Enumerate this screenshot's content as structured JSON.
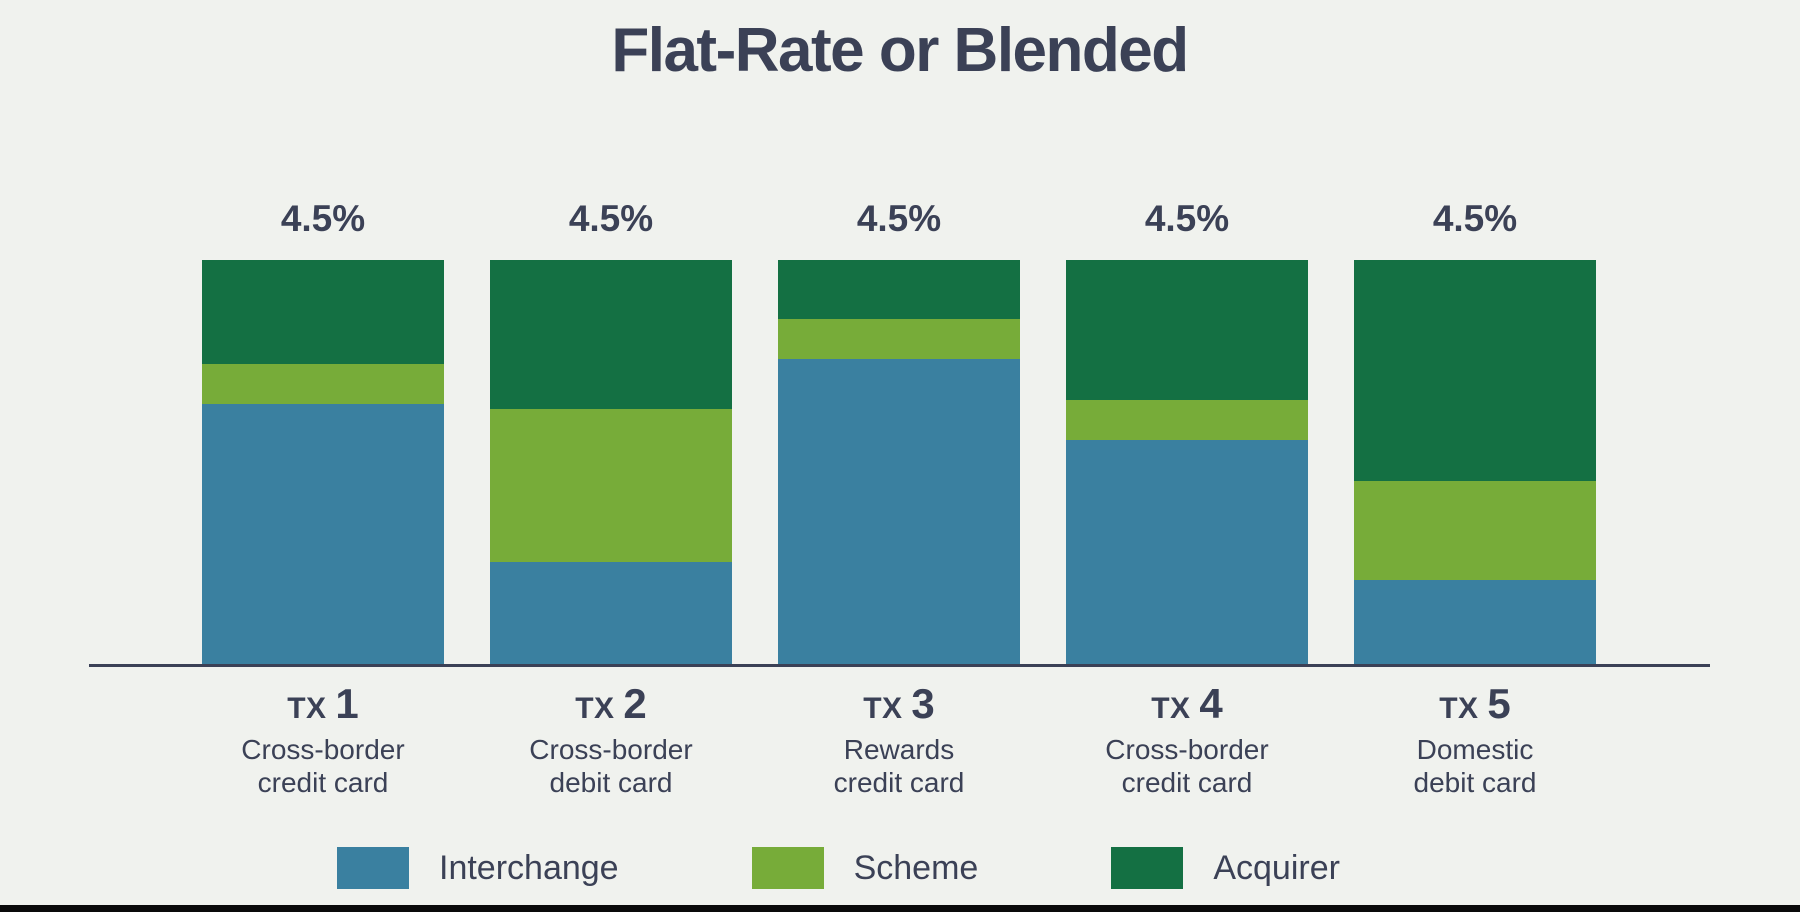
{
  "title": "Flat-Rate or Blended",
  "colors": {
    "background": "#f0f2ee",
    "text": "#3b4156",
    "axis": "#3b4156",
    "footer_bar": "#0a0a0a",
    "interchange": "#3a80a0",
    "scheme": "#77ac39",
    "acquirer": "#147043"
  },
  "chart_data": {
    "type": "stacked_bar",
    "title": "Flat-Rate or Blended",
    "unit": "%",
    "ylim": [
      0,
      4.5
    ],
    "grid": false,
    "legend_position": "bottom",
    "bar_totals": [
      "4.5%",
      "4.5%",
      "4.5%",
      "4.5%",
      "4.5%"
    ],
    "categories": [
      {
        "prefix": "TX",
        "number": "1",
        "description_lines": [
          "Cross-border",
          "credit card"
        ]
      },
      {
        "prefix": "TX",
        "number": "2",
        "description_lines": [
          "Cross-border",
          "debit card"
        ]
      },
      {
        "prefix": "TX",
        "number": "3",
        "description_lines": [
          "Rewards",
          "credit card"
        ]
      },
      {
        "prefix": "TX",
        "number": "4",
        "description_lines": [
          "Cross-border",
          "credit card"
        ]
      },
      {
        "prefix": "TX",
        "number": "5",
        "description_lines": [
          "Domestic",
          "debit card"
        ]
      }
    ],
    "series": [
      {
        "name": "Interchange",
        "color": "#3a80a0",
        "values": [
          2.9,
          1.15,
          3.4,
          2.5,
          0.95
        ]
      },
      {
        "name": "Scheme",
        "color": "#77ac39",
        "values": [
          0.45,
          1.7,
          0.45,
          0.45,
          1.1
        ]
      },
      {
        "name": "Acquirer",
        "color": "#147043",
        "values": [
          1.15,
          1.65,
          0.65,
          1.55,
          2.45
        ]
      }
    ]
  }
}
